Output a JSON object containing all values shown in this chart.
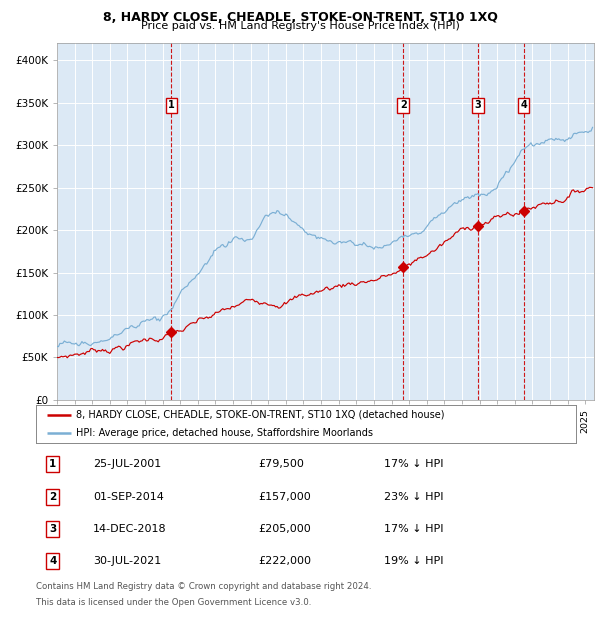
{
  "title1": "8, HARDY CLOSE, CHEADLE, STOKE-ON-TRENT, ST10 1XQ",
  "title2": "Price paid vs. HM Land Registry's House Price Index (HPI)",
  "bg_color": "#dce9f5",
  "red_color": "#cc0000",
  "blue_color": "#7bafd4",
  "sale_prices": [
    79500,
    157000,
    205000,
    222000
  ],
  "sale_labels": [
    "1",
    "2",
    "3",
    "4"
  ],
  "sale_pcts": [
    "17% ↓ HPI",
    "23% ↓ HPI",
    "17% ↓ HPI",
    "19% ↓ HPI"
  ],
  "sale_display_dates": [
    "25-JUL-2001",
    "01-SEP-2014",
    "14-DEC-2018",
    "30-JUL-2021"
  ],
  "sale_prices_str": [
    "£79,500",
    "£157,000",
    "£205,000",
    "£222,000"
  ],
  "legend1": "8, HARDY CLOSE, CHEADLE, STOKE-ON-TRENT, ST10 1XQ (detached house)",
  "legend2": "HPI: Average price, detached house, Staffordshire Moorlands",
  "footer1": "Contains HM Land Registry data © Crown copyright and database right 2024.",
  "footer2": "This data is licensed under the Open Government Licence v3.0.",
  "yticks": [
    0,
    50000,
    100000,
    150000,
    200000,
    250000,
    300000,
    350000,
    400000
  ],
  "ytick_labels": [
    "£0",
    "£50K",
    "£100K",
    "£150K",
    "£200K",
    "£250K",
    "£300K",
    "£350K",
    "£400K"
  ]
}
